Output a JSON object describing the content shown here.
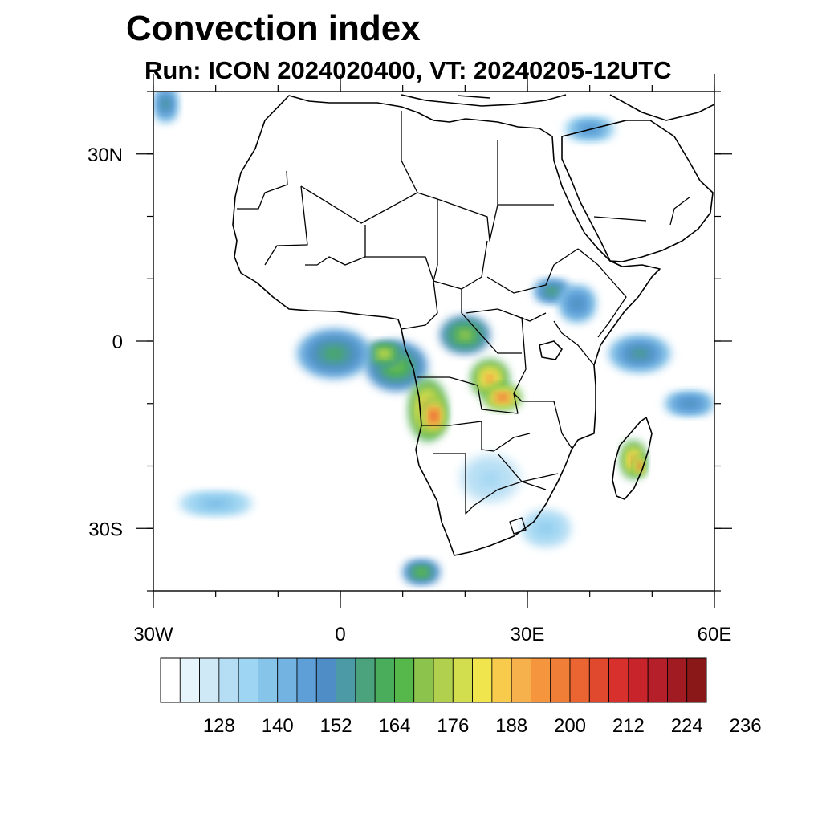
{
  "title": "Convection index",
  "subtitle": "Run: ICON 2024020400,  VT: 20240205-12UTC",
  "map": {
    "lon_range": [
      -30,
      60
    ],
    "lat_range": [
      -40,
      40
    ],
    "x_ticks": [
      {
        "lon": -30,
        "label": "30W"
      },
      {
        "lon": 0,
        "label": "0"
      },
      {
        "lon": 30,
        "label": "30E"
      },
      {
        "lon": 60,
        "label": "60E"
      }
    ],
    "y_ticks": [
      {
        "lat": 30,
        "label": "30N"
      },
      {
        "lat": 0,
        "label": "0"
      },
      {
        "lat": -30,
        "label": "30S"
      }
    ],
    "minor_lon_step": 10,
    "minor_lat_step": 10
  },
  "colorbar": {
    "colors": [
      "#ffffff",
      "#e6f4fb",
      "#cfe9f7",
      "#b5def4",
      "#9ed5f2",
      "#86c4e9",
      "#72b3e1",
      "#5d9fd6",
      "#4f8dc6",
      "#4b9aa5",
      "#4aa37d",
      "#49ad5b",
      "#56b84a",
      "#8bc34d",
      "#b1d04e",
      "#d3de4f",
      "#f1e54e",
      "#f8cb4d",
      "#f6b04c",
      "#f5963f",
      "#f07e37",
      "#ea6532",
      "#e1492e",
      "#d8312d",
      "#c8242c",
      "#b51f29",
      "#a11b22",
      "#8b1818"
    ],
    "labels": [
      "128",
      "140",
      "152",
      "164",
      "176",
      "188",
      "200",
      "212",
      "224",
      "236"
    ],
    "label_box_index": [
      2,
      5,
      8,
      11,
      14,
      17,
      20,
      23,
      26,
      29
    ]
  },
  "fields": [
    {
      "lon": 9,
      "lat": -4,
      "rx": 5,
      "ry": 4,
      "level": 13
    },
    {
      "lon": 7,
      "lat": -2,
      "rx": 3,
      "ry": 2,
      "level": 16
    },
    {
      "lon": 14,
      "lat": -11,
      "rx": 3,
      "ry": 5,
      "level": 20
    },
    {
      "lon": 15,
      "lat": -12,
      "rx": 2,
      "ry": 3,
      "level": 23
    },
    {
      "lon": 24,
      "lat": -6,
      "rx": 3,
      "ry": 3,
      "level": 20
    },
    {
      "lon": 26,
      "lat": -9,
      "rx": 3,
      "ry": 2,
      "level": 22
    },
    {
      "lon": 47,
      "lat": -19,
      "rx": 2,
      "ry": 3,
      "level": 20
    },
    {
      "lon": 48,
      "lat": -20,
      "rx": 1,
      "ry": 1.5,
      "level": 23
    },
    {
      "lon": 20,
      "lat": 1,
      "rx": 4,
      "ry": 3,
      "level": 14
    },
    {
      "lon": 34,
      "lat": 8,
      "rx": 3,
      "ry": 2,
      "level": 11
    },
    {
      "lon": 38,
      "lat": 6,
      "rx": 3,
      "ry": 3,
      "level": 9
    },
    {
      "lon": -1,
      "lat": -2,
      "rx": 6,
      "ry": 4,
      "level": 11
    },
    {
      "lon": 48,
      "lat": -2,
      "rx": 5,
      "ry": 3,
      "level": 10
    },
    {
      "lon": 56,
      "lat": -10,
      "rx": 4,
      "ry": 2,
      "level": 9
    },
    {
      "lon": 13,
      "lat": -37,
      "rx": 3,
      "ry": 2,
      "level": 13
    },
    {
      "lon": -28,
      "lat": 38,
      "rx": 2,
      "ry": 3,
      "level": 10
    },
    {
      "lon": 40,
      "lat": 34,
      "rx": 4,
      "ry": 2,
      "level": 8
    },
    {
      "lon": -20,
      "lat": -26,
      "rx": 6,
      "ry": 2,
      "level": 6
    },
    {
      "lon": 33,
      "lat": -30,
      "rx": 4,
      "ry": 3,
      "level": 5
    },
    {
      "lon": 24,
      "lat": -22,
      "rx": 5,
      "ry": 4,
      "level": 4
    }
  ]
}
